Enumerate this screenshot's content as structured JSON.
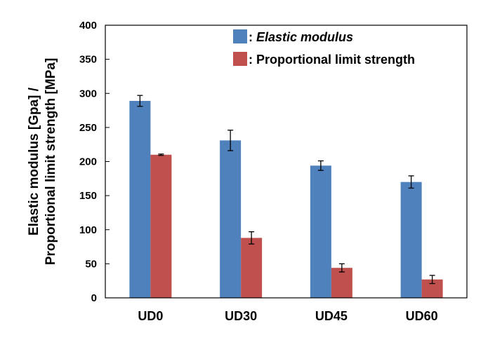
{
  "chart_data": {
    "type": "bar",
    "title": "",
    "xlabel": "",
    "ylabel_line1": "Elastic modulus [Gpa] /",
    "ylabel_line2": "Proportional limit strength [MPa]",
    "ylim": [
      0,
      400
    ],
    "yticks": [
      0,
      50,
      100,
      150,
      200,
      250,
      300,
      350,
      400
    ],
    "categories": [
      "UD0",
      "UD30",
      "UD45",
      "UD60"
    ],
    "series": [
      {
        "name": "Elastic modulus",
        "legend_prefix": ": ",
        "legend_text": "Elastic modulus",
        "color": "#4f81bd",
        "values": [
          289,
          231,
          194,
          170
        ],
        "errors": [
          8,
          15,
          7,
          9
        ]
      },
      {
        "name": "Proportional limit strength",
        "legend_prefix": ": ",
        "legend_text": "Proportional limit strength",
        "color": "#c0504d",
        "values": [
          210,
          88,
          44,
          27
        ],
        "errors": [
          1,
          9,
          6,
          6
        ]
      }
    ],
    "legend_position": "top-right",
    "grid": false
  }
}
